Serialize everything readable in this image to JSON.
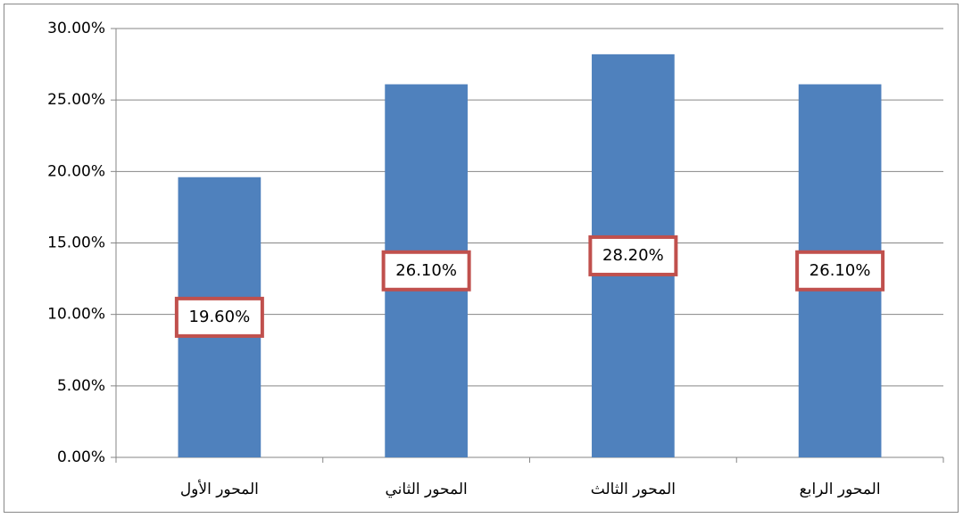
{
  "chart_data": {
    "type": "bar",
    "categories": [
      "المحور الأول",
      "المحور الثاني",
      "المحور الثالث",
      "المحور الرابع"
    ],
    "values": [
      19.6,
      26.1,
      28.2,
      26.1
    ],
    "value_labels": [
      "19.60%",
      "26.10%",
      "28.20%",
      "26.10%"
    ],
    "color": "#4f81bd",
    "ylim": [
      0,
      30
    ],
    "yticks": [
      {
        "value": 0,
        "label": "0.00%"
      },
      {
        "value": 5,
        "label": "5.00%"
      },
      {
        "value": 10,
        "label": "10.00%"
      },
      {
        "value": 15,
        "label": "15.00%"
      },
      {
        "value": 20,
        "label": "20.00%"
      },
      {
        "value": 25,
        "label": "25.00%"
      },
      {
        "value": 30,
        "label": "30.00%"
      }
    ],
    "grid": true
  }
}
